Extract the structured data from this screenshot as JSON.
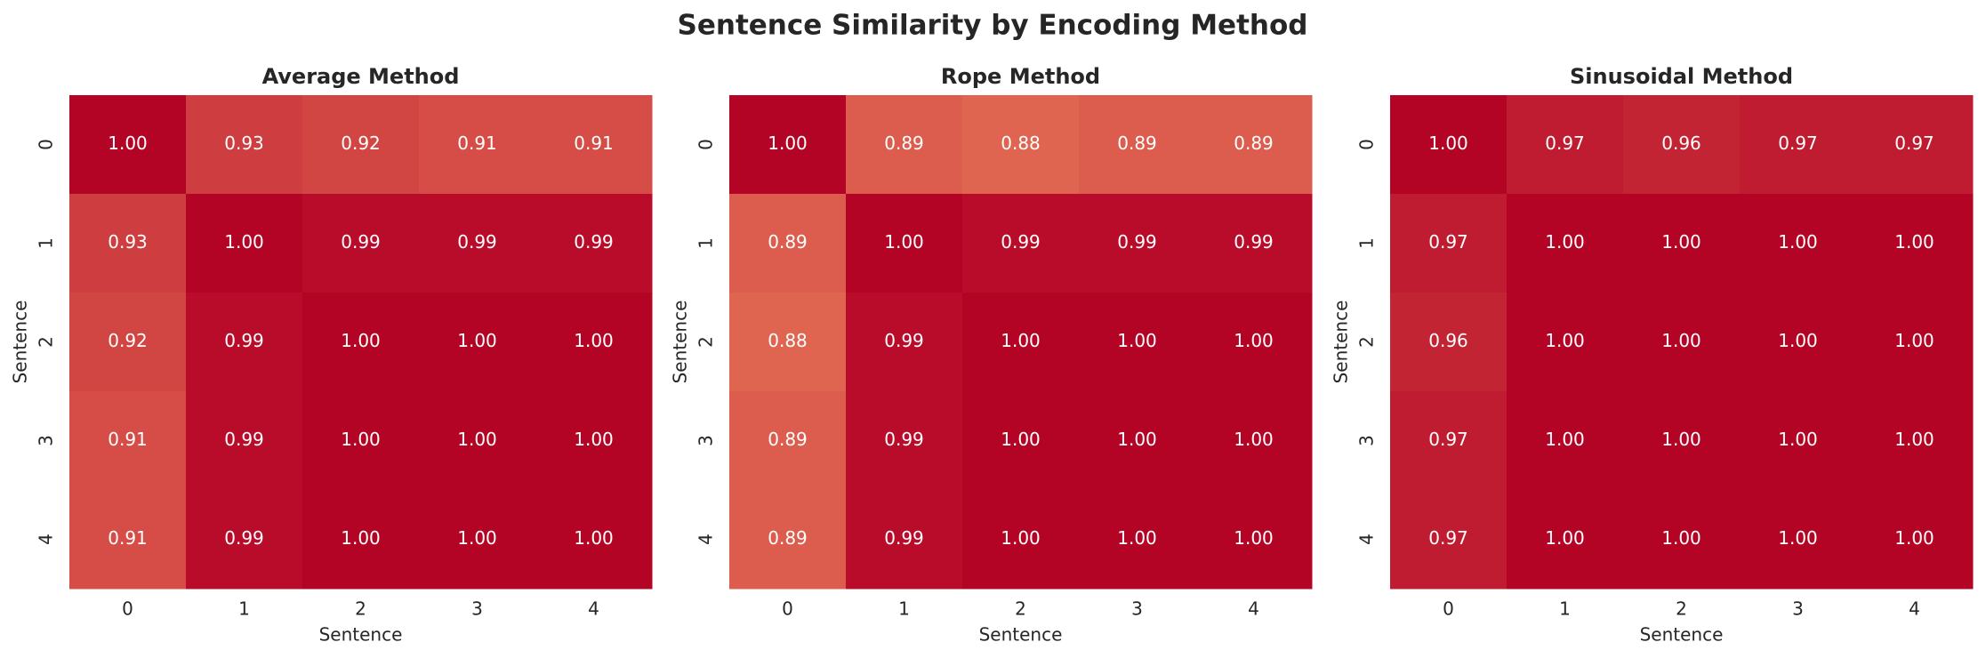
{
  "title": "Sentence Similarity by Encoding Method",
  "chart_data": [
    {
      "type": "heatmap",
      "title": "Average Method",
      "xlabel": "Sentence",
      "ylabel": "Sentence",
      "x": [
        0,
        1,
        2,
        3,
        4
      ],
      "y": [
        0,
        1,
        2,
        3,
        4
      ],
      "colormap": "coolwarm",
      "clim": [
        0,
        1
      ],
      "values": [
        [
          1.0,
          0.93,
          0.92,
          0.91,
          0.91
        ],
        [
          0.93,
          1.0,
          0.99,
          0.99,
          0.99
        ],
        [
          0.92,
          0.99,
          1.0,
          1.0,
          1.0
        ],
        [
          0.91,
          0.99,
          1.0,
          1.0,
          1.0
        ],
        [
          0.91,
          0.99,
          1.0,
          1.0,
          1.0
        ]
      ],
      "value_labels": [
        [
          "1.00",
          "0.93",
          "0.92",
          "0.91",
          "0.91"
        ],
        [
          "0.93",
          "1.00",
          "0.99",
          "0.99",
          "0.99"
        ],
        [
          "0.92",
          "0.99",
          "1.00",
          "1.00",
          "1.00"
        ],
        [
          "0.91",
          "0.99",
          "1.00",
          "1.00",
          "1.00"
        ],
        [
          "0.91",
          "0.99",
          "1.00",
          "1.00",
          "1.00"
        ]
      ]
    },
    {
      "type": "heatmap",
      "title": "Rope Method",
      "xlabel": "Sentence",
      "ylabel": "Sentence",
      "x": [
        0,
        1,
        2,
        3,
        4
      ],
      "y": [
        0,
        1,
        2,
        3,
        4
      ],
      "colormap": "coolwarm",
      "clim": [
        0,
        1
      ],
      "values": [
        [
          1.0,
          0.89,
          0.88,
          0.89,
          0.89
        ],
        [
          0.89,
          1.0,
          0.99,
          0.99,
          0.99
        ],
        [
          0.88,
          0.99,
          1.0,
          1.0,
          1.0
        ],
        [
          0.89,
          0.99,
          1.0,
          1.0,
          1.0
        ],
        [
          0.89,
          0.99,
          1.0,
          1.0,
          1.0
        ]
      ],
      "value_labels": [
        [
          "1.00",
          "0.89",
          "0.88",
          "0.89",
          "0.89"
        ],
        [
          "0.89",
          "1.00",
          "0.99",
          "0.99",
          "0.99"
        ],
        [
          "0.88",
          "0.99",
          "1.00",
          "1.00",
          "1.00"
        ],
        [
          "0.89",
          "0.99",
          "1.00",
          "1.00",
          "1.00"
        ],
        [
          "0.89",
          "0.99",
          "1.00",
          "1.00",
          "1.00"
        ]
      ]
    },
    {
      "type": "heatmap",
      "title": "Sinusoidal Method",
      "xlabel": "Sentence",
      "ylabel": "Sentence",
      "x": [
        0,
        1,
        2,
        3,
        4
      ],
      "y": [
        0,
        1,
        2,
        3,
        4
      ],
      "colormap": "coolwarm",
      "clim": [
        0,
        1
      ],
      "values": [
        [
          1.0,
          0.97,
          0.96,
          0.97,
          0.97
        ],
        [
          0.97,
          1.0,
          1.0,
          1.0,
          1.0
        ],
        [
          0.96,
          1.0,
          1.0,
          1.0,
          1.0
        ],
        [
          0.97,
          1.0,
          1.0,
          1.0,
          1.0
        ],
        [
          0.97,
          1.0,
          1.0,
          1.0,
          1.0
        ]
      ],
      "value_labels": [
        [
          "1.00",
          "0.97",
          "0.96",
          "0.97",
          "0.97"
        ],
        [
          "0.97",
          "1.00",
          "1.00",
          "1.00",
          "1.00"
        ],
        [
          "0.96",
          "1.00",
          "1.00",
          "1.00",
          "1.00"
        ],
        [
          "0.97",
          "1.00",
          "1.00",
          "1.00",
          "1.00"
        ],
        [
          "0.97",
          "1.00",
          "1.00",
          "1.00",
          "1.00"
        ]
      ]
    }
  ]
}
